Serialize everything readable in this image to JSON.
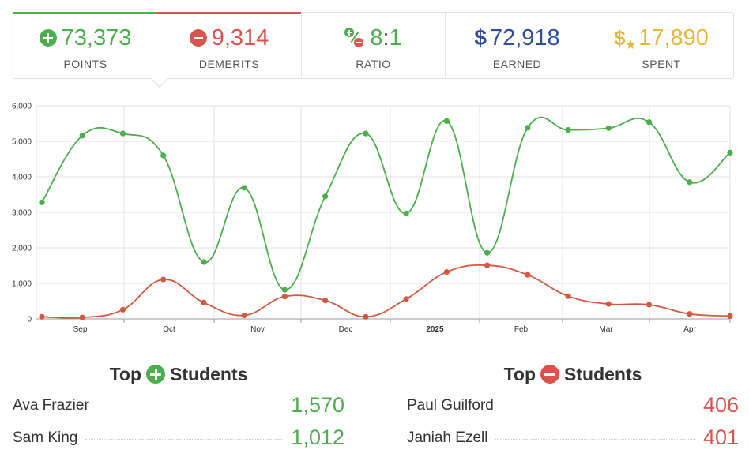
{
  "stats": {
    "points": {
      "value": "73,373",
      "label": "POINTS",
      "icon": "plus-circle-icon",
      "color": "#4cae4c"
    },
    "demerits": {
      "value": "9,314",
      "label": "DEMERITS",
      "icon": "minus-circle-icon",
      "color": "#d9534f"
    },
    "ratio": {
      "left": "8",
      "sep": ":",
      "right": "1",
      "label": "RATIO",
      "icon": "ratio-icon"
    },
    "earned": {
      "symbol": "$",
      "value": "72,918",
      "label": "EARNED",
      "icon": "dollar-icon",
      "color": "#2d4f9e"
    },
    "spent": {
      "symbol": "$",
      "star": "★",
      "value": "17,890",
      "label": "SPENT",
      "icon": "dollar-star-icon",
      "color": "#e5b83a"
    }
  },
  "chart_data": {
    "type": "line",
    "x_tick_labels": [
      "Sep",
      "Oct",
      "Nov",
      "Dec",
      "2025",
      "Feb",
      "Mar",
      "Apr"
    ],
    "y_tick_labels": [
      "0",
      "1,000",
      "2,000",
      "3,000",
      "4,000",
      "5,000",
      "6,000"
    ],
    "ylim": [
      0,
      6000
    ],
    "grid": true,
    "series": [
      {
        "color": "#4cae4c",
        "values": [
          3280,
          5160,
          5220,
          4600,
          1600,
          3690,
          820,
          3450,
          5220,
          2970,
          5570,
          1860,
          5380,
          5320,
          5370,
          5540,
          3850,
          4680
        ]
      },
      {
        "color": "#d05a40",
        "values": [
          60,
          40,
          260,
          1110,
          460,
          100,
          630,
          520,
          60,
          560,
          1320,
          1510,
          1240,
          640,
          420,
          400,
          140,
          80
        ]
      }
    ]
  },
  "top_positive": {
    "title_before": "Top",
    "title_after": "Students",
    "icon": "plus-circle-icon",
    "rows": [
      {
        "name": "Ava Frazier",
        "score": "1,570"
      },
      {
        "name": "Sam King",
        "score": "1,012"
      }
    ]
  },
  "top_negative": {
    "title_before": "Top",
    "title_after": "Students",
    "icon": "minus-circle-icon",
    "rows": [
      {
        "name": "Paul Guilford",
        "score": "406"
      },
      {
        "name": "Janiah Ezell",
        "score": "401"
      }
    ]
  }
}
